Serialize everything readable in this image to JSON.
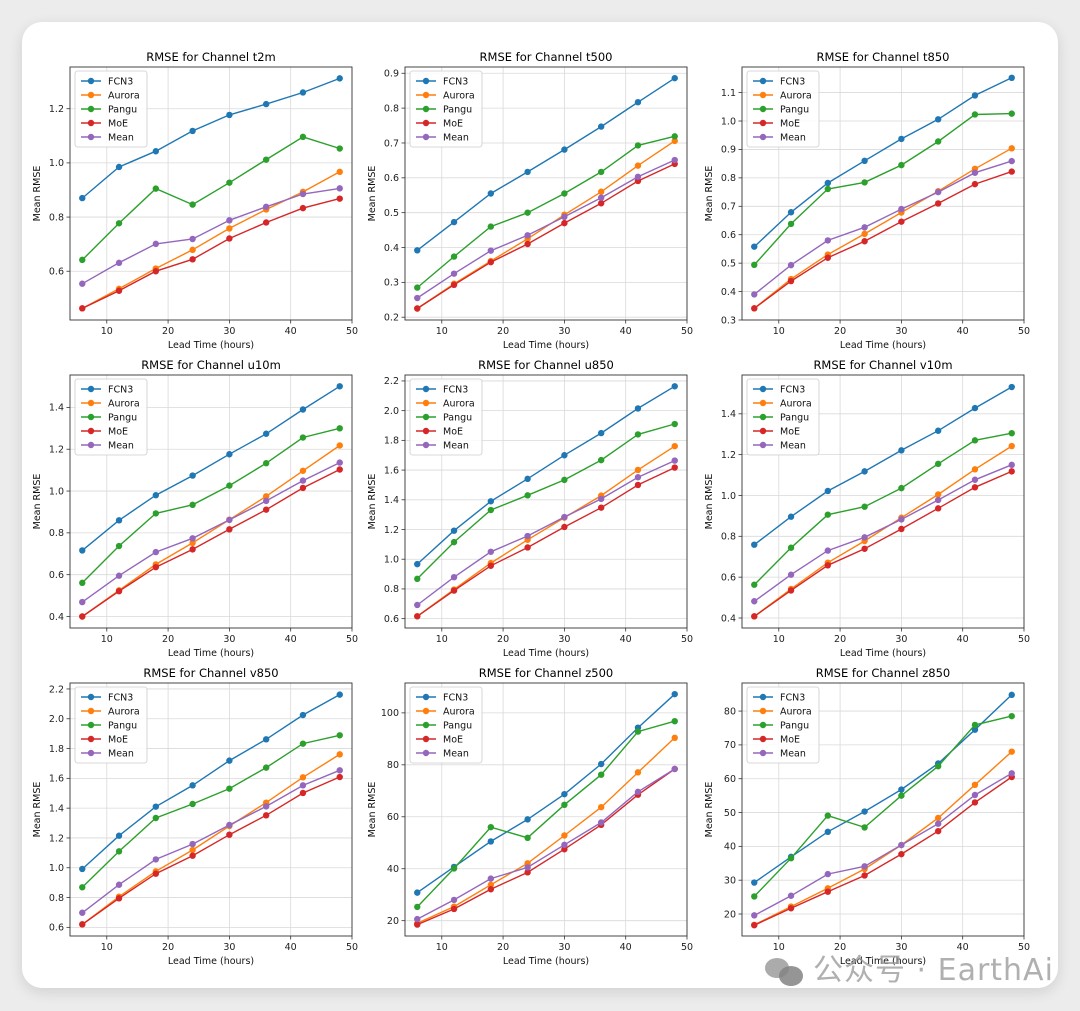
{
  "watermark": "公众号 · EarthAi",
  "chart_data": [
    {
      "type": "line",
      "title": "RMSE for Channel t2m",
      "xlabel": "Lead Time (hours)",
      "ylabel": "Mean RMSE",
      "x": [
        6,
        12,
        18,
        24,
        30,
        36,
        42,
        48
      ],
      "xlim": [
        4,
        50
      ],
      "ylim": [
        0.42,
        1.354
      ],
      "xticks": [
        10,
        20,
        30,
        40,
        50
      ],
      "yticks": [
        0.6,
        0.8,
        1.0,
        1.2
      ],
      "ytick_labels": [
        "0.6",
        "0.8",
        "1.0",
        "1.2"
      ],
      "grid": true,
      "legend": "top-left",
      "series": [
        {
          "name": "FCN3",
          "color": "#1f77b4",
          "values": [
            0.87,
            0.985,
            1.043,
            1.118,
            1.177,
            1.217,
            1.26,
            1.312
          ]
        },
        {
          "name": "Aurora",
          "color": "#ff7f0e",
          "values": [
            0.463,
            0.535,
            0.61,
            0.679,
            0.758,
            0.828,
            0.893,
            0.967
          ]
        },
        {
          "name": "Pangu",
          "color": "#2ca02c",
          "values": [
            0.642,
            0.777,
            0.905,
            0.846,
            0.927,
            1.012,
            1.096,
            1.053
          ]
        },
        {
          "name": "MoE",
          "color": "#d62728",
          "values": [
            0.463,
            0.528,
            0.6,
            0.644,
            0.721,
            0.78,
            0.833,
            0.868
          ]
        },
        {
          "name": "Mean",
          "color": "#9467bd",
          "values": [
            0.554,
            0.631,
            0.701,
            0.719,
            0.788,
            0.838,
            0.885,
            0.906
          ]
        }
      ]
    },
    {
      "type": "line",
      "title": "RMSE for Channel t500",
      "xlabel": "Lead Time (hours)",
      "ylabel": "Mean RMSE",
      "x": [
        6,
        12,
        18,
        24,
        30,
        36,
        42,
        48
      ],
      "xlim": [
        4,
        50
      ],
      "ylim": [
        0.192,
        0.918
      ],
      "xticks": [
        10,
        20,
        30,
        40,
        50
      ],
      "yticks": [
        0.2,
        0.3,
        0.4,
        0.5,
        0.6,
        0.7,
        0.8,
        0.9
      ],
      "ytick_labels": [
        "0.2",
        "0.3",
        "0.4",
        "0.5",
        "0.6",
        "0.7",
        "0.8",
        "0.9"
      ],
      "grid": true,
      "legend": "top-left",
      "series": [
        {
          "name": "FCN3",
          "color": "#1f77b4",
          "values": [
            0.392,
            0.473,
            0.555,
            0.617,
            0.681,
            0.747,
            0.817,
            0.886
          ]
        },
        {
          "name": "Aurora",
          "color": "#ff7f0e",
          "values": [
            0.225,
            0.296,
            0.361,
            0.425,
            0.494,
            0.56,
            0.635,
            0.706
          ]
        },
        {
          "name": "Pangu",
          "color": "#2ca02c",
          "values": [
            0.285,
            0.374,
            0.46,
            0.5,
            0.555,
            0.617,
            0.693,
            0.719
          ]
        },
        {
          "name": "MoE",
          "color": "#d62728",
          "values": [
            0.225,
            0.293,
            0.358,
            0.41,
            0.47,
            0.527,
            0.591,
            0.64
          ]
        },
        {
          "name": "Mean",
          "color": "#9467bd",
          "values": [
            0.255,
            0.325,
            0.391,
            0.435,
            0.488,
            0.543,
            0.603,
            0.651
          ]
        }
      ]
    },
    {
      "type": "line",
      "title": "RMSE for Channel t850",
      "xlabel": "Lead Time (hours)",
      "ylabel": "Mean RMSE",
      "x": [
        6,
        12,
        18,
        24,
        30,
        36,
        42,
        48
      ],
      "xlim": [
        4,
        50
      ],
      "ylim": [
        0.3,
        1.19
      ],
      "xticks": [
        10,
        20,
        30,
        40,
        50
      ],
      "yticks": [
        0.3,
        0.4,
        0.5,
        0.6,
        0.7,
        0.8,
        0.9,
        1.0,
        1.1
      ],
      "ytick_labels": [
        "0.3",
        "0.4",
        "0.5",
        "0.6",
        "0.7",
        "0.8",
        "0.9",
        "1.0",
        "1.1"
      ],
      "grid": true,
      "legend": "top-left",
      "series": [
        {
          "name": "FCN3",
          "color": "#1f77b4",
          "values": [
            0.558,
            0.679,
            0.782,
            0.86,
            0.937,
            1.006,
            1.09,
            1.152
          ]
        },
        {
          "name": "Aurora",
          "color": "#ff7f0e",
          "values": [
            0.341,
            0.444,
            0.53,
            0.603,
            0.678,
            0.753,
            0.832,
            0.904
          ]
        },
        {
          "name": "Pangu",
          "color": "#2ca02c",
          "values": [
            0.494,
            0.638,
            0.761,
            0.784,
            0.845,
            0.928,
            1.023,
            1.026
          ]
        },
        {
          "name": "MoE",
          "color": "#d62728",
          "values": [
            0.341,
            0.437,
            0.519,
            0.577,
            0.646,
            0.71,
            0.778,
            0.822
          ]
        },
        {
          "name": "Mean",
          "color": "#9467bd",
          "values": [
            0.39,
            0.493,
            0.58,
            0.626,
            0.69,
            0.75,
            0.818,
            0.859
          ]
        }
      ]
    },
    {
      "type": "line",
      "title": "RMSE for Channel u10m",
      "xlabel": "Lead Time (hours)",
      "ylabel": "Mean RMSE",
      "x": [
        6,
        12,
        18,
        24,
        30,
        36,
        42,
        48
      ],
      "xlim": [
        4,
        50
      ],
      "ylim": [
        0.345,
        1.555
      ],
      "xticks": [
        10,
        20,
        30,
        40,
        50
      ],
      "yticks": [
        0.4,
        0.6,
        0.8,
        1.0,
        1.2,
        1.4
      ],
      "ytick_labels": [
        "0.4",
        "0.6",
        "0.8",
        "1.0",
        "1.2",
        "1.4"
      ],
      "grid": true,
      "legend": "top-left",
      "series": [
        {
          "name": "FCN3",
          "color": "#1f77b4",
          "values": [
            0.716,
            0.86,
            0.98,
            1.074,
            1.176,
            1.274,
            1.39,
            1.501
          ]
        },
        {
          "name": "Aurora",
          "color": "#ff7f0e",
          "values": [
            0.4,
            0.525,
            0.649,
            0.752,
            0.863,
            0.975,
            1.097,
            1.218
          ]
        },
        {
          "name": "Pangu",
          "color": "#2ca02c",
          "values": [
            0.561,
            0.737,
            0.893,
            0.934,
            1.026,
            1.133,
            1.256,
            1.3
          ]
        },
        {
          "name": "MoE",
          "color": "#d62728",
          "values": [
            0.4,
            0.521,
            0.636,
            0.721,
            0.817,
            0.911,
            1.015,
            1.103
          ]
        },
        {
          "name": "Mean",
          "color": "#9467bd",
          "values": [
            0.469,
            0.595,
            0.708,
            0.774,
            0.862,
            0.953,
            1.05,
            1.136
          ]
        }
      ]
    },
    {
      "type": "line",
      "title": "RMSE for Channel u850",
      "xlabel": "Lead Time (hours)",
      "ylabel": "Mean RMSE",
      "x": [
        6,
        12,
        18,
        24,
        30,
        36,
        42,
        48
      ],
      "xlim": [
        4,
        50
      ],
      "ylim": [
        0.537,
        2.24
      ],
      "xticks": [
        10,
        20,
        30,
        40,
        50
      ],
      "yticks": [
        0.6,
        0.8,
        1.0,
        1.2,
        1.4,
        1.6,
        1.8,
        2.0,
        2.2
      ],
      "ytick_labels": [
        "0.6",
        "0.8",
        "1.0",
        "1.2",
        "1.4",
        "1.6",
        "1.8",
        "2.0",
        "2.2"
      ],
      "grid": true,
      "legend": "top-left",
      "series": [
        {
          "name": "FCN3",
          "color": "#1f77b4",
          "values": [
            0.967,
            1.192,
            1.39,
            1.541,
            1.7,
            1.849,
            2.015,
            2.164
          ]
        },
        {
          "name": "Aurora",
          "color": "#ff7f0e",
          "values": [
            0.616,
            0.796,
            0.974,
            1.131,
            1.28,
            1.428,
            1.601,
            1.761
          ]
        },
        {
          "name": "Pangu",
          "color": "#2ca02c",
          "values": [
            0.868,
            1.115,
            1.331,
            1.43,
            1.534,
            1.667,
            1.84,
            1.91
          ]
        },
        {
          "name": "MoE",
          "color": "#d62728",
          "values": [
            0.616,
            0.789,
            0.956,
            1.079,
            1.217,
            1.347,
            1.5,
            1.617
          ]
        },
        {
          "name": "Mean",
          "color": "#9467bd",
          "values": [
            0.692,
            0.879,
            1.05,
            1.156,
            1.284,
            1.406,
            1.552,
            1.664
          ]
        }
      ]
    },
    {
      "type": "line",
      "title": "RMSE for Channel v10m",
      "xlabel": "Lead Time (hours)",
      "ylabel": "Mean RMSE",
      "x": [
        6,
        12,
        18,
        24,
        30,
        36,
        42,
        48
      ],
      "xlim": [
        4,
        50
      ],
      "ylim": [
        0.351,
        1.59
      ],
      "xticks": [
        10,
        20,
        30,
        40,
        50
      ],
      "yticks": [
        0.4,
        0.6,
        0.8,
        1.0,
        1.2,
        1.4
      ],
      "ytick_labels": [
        "0.4",
        "0.6",
        "0.8",
        "1.0",
        "1.2",
        "1.4"
      ],
      "grid": true,
      "legend": "top-left",
      "series": [
        {
          "name": "FCN3",
          "color": "#1f77b4",
          "values": [
            0.759,
            0.896,
            1.022,
            1.118,
            1.221,
            1.317,
            1.428,
            1.531
          ]
        },
        {
          "name": "Aurora",
          "color": "#ff7f0e",
          "values": [
            0.408,
            0.542,
            0.671,
            0.777,
            0.891,
            1.005,
            1.128,
            1.242
          ]
        },
        {
          "name": "Pangu",
          "color": "#2ca02c",
          "values": [
            0.563,
            0.744,
            0.906,
            0.945,
            1.036,
            1.155,
            1.27,
            1.305
          ]
        },
        {
          "name": "MoE",
          "color": "#d62728",
          "values": [
            0.408,
            0.535,
            0.658,
            0.739,
            0.836,
            0.937,
            1.04,
            1.118
          ]
        },
        {
          "name": "Mean",
          "color": "#9467bd",
          "values": [
            0.482,
            0.612,
            0.73,
            0.795,
            0.883,
            0.978,
            1.077,
            1.15
          ]
        }
      ]
    },
    {
      "type": "line",
      "title": "RMSE for Channel v850",
      "xlabel": "Lead Time (hours)",
      "ylabel": "Mean RMSE",
      "x": [
        6,
        12,
        18,
        24,
        30,
        36,
        42,
        48
      ],
      "xlim": [
        4,
        50
      ],
      "ylim": [
        0.542,
        2.24
      ],
      "xticks": [
        10,
        20,
        30,
        40,
        50
      ],
      "yticks": [
        0.6,
        0.8,
        1.0,
        1.2,
        1.4,
        1.6,
        1.8,
        2.0,
        2.2
      ],
      "ytick_labels": [
        "0.6",
        "0.8",
        "1.0",
        "1.2",
        "1.4",
        "1.6",
        "1.8",
        "2.0",
        "2.2"
      ],
      "grid": true,
      "legend": "top-left",
      "series": [
        {
          "name": "FCN3",
          "color": "#1f77b4",
          "values": [
            0.992,
            1.215,
            1.41,
            1.553,
            1.719,
            1.862,
            2.025,
            2.162
          ]
        },
        {
          "name": "Aurora",
          "color": "#ff7f0e",
          "values": [
            0.62,
            0.806,
            0.976,
            1.119,
            1.28,
            1.437,
            1.607,
            1.761
          ]
        },
        {
          "name": "Pangu",
          "color": "#2ca02c",
          "values": [
            0.869,
            1.11,
            1.334,
            1.428,
            1.531,
            1.672,
            1.833,
            1.889
          ]
        },
        {
          "name": "MoE",
          "color": "#d62728",
          "values": [
            0.62,
            0.795,
            0.96,
            1.081,
            1.222,
            1.352,
            1.502,
            1.609
          ]
        },
        {
          "name": "Mean",
          "color": "#9467bd",
          "values": [
            0.698,
            0.886,
            1.056,
            1.159,
            1.287,
            1.412,
            1.553,
            1.654
          ]
        }
      ]
    },
    {
      "type": "line",
      "title": "RMSE for Channel z500",
      "xlabel": "Lead Time (hours)",
      "ylabel": "Mean RMSE",
      "x": [
        6,
        12,
        18,
        24,
        30,
        36,
        42,
        48
      ],
      "xlim": [
        4,
        50
      ],
      "ylim": [
        14.1,
        111.5
      ],
      "xticks": [
        10,
        20,
        30,
        40,
        50
      ],
      "yticks": [
        20,
        40,
        60,
        80,
        100
      ],
      "ytick_labels": [
        "20",
        "40",
        "60",
        "80",
        "100"
      ],
      "grid": true,
      "legend": "top-left",
      "series": [
        {
          "name": "FCN3",
          "color": "#1f77b4",
          "values": [
            30.8,
            40.7,
            50.5,
            59.0,
            68.7,
            80.3,
            94.3,
            107.2
          ]
        },
        {
          "name": "Aurora",
          "color": "#ff7f0e",
          "values": [
            19.0,
            25.4,
            33.8,
            42.1,
            52.8,
            63.7,
            77.1,
            90.4
          ]
        },
        {
          "name": "Pangu",
          "color": "#2ca02c",
          "values": [
            25.3,
            40.1,
            56.0,
            51.9,
            64.6,
            76.2,
            92.8,
            96.8
          ]
        },
        {
          "name": "MoE",
          "color": "#d62728",
          "values": [
            18.5,
            24.5,
            32.1,
            38.6,
            47.5,
            56.9,
            68.5,
            78.4
          ]
        },
        {
          "name": "Mean",
          "color": "#9467bd",
          "values": [
            20.6,
            28.0,
            36.2,
            40.5,
            49.2,
            57.8,
            69.6,
            78.4
          ]
        }
      ]
    },
    {
      "type": "line",
      "title": "RMSE for Channel z850",
      "xlabel": "Lead Time (hours)",
      "ylabel": "Mean RMSE",
      "x": [
        6,
        12,
        18,
        24,
        30,
        36,
        42,
        48
      ],
      "xlim": [
        4,
        50
      ],
      "ylim": [
        13.5,
        88.3
      ],
      "xticks": [
        10,
        20,
        30,
        40,
        50
      ],
      "yticks": [
        20,
        30,
        40,
        50,
        60,
        70,
        80
      ],
      "ytick_labels": [
        "20",
        "30",
        "40",
        "50",
        "60",
        "70",
        "80"
      ],
      "grid": true,
      "legend": "top-left",
      "series": [
        {
          "name": "FCN3",
          "color": "#1f77b4",
          "values": [
            29.3,
            36.9,
            44.3,
            50.3,
            56.8,
            64.5,
            74.5,
            84.8
          ]
        },
        {
          "name": "Aurora",
          "color": "#ff7f0e",
          "values": [
            16.8,
            22.2,
            27.6,
            33.3,
            40.4,
            48.4,
            58.2,
            68.0
          ]
        },
        {
          "name": "Pangu",
          "color": "#2ca02c",
          "values": [
            25.2,
            36.5,
            49.1,
            45.6,
            55.0,
            63.7,
            75.9,
            78.5
          ]
        },
        {
          "name": "MoE",
          "color": "#d62728",
          "values": [
            16.7,
            21.7,
            26.6,
            31.4,
            37.7,
            44.5,
            53.0,
            60.5
          ]
        },
        {
          "name": "Mean",
          "color": "#9467bd",
          "values": [
            19.6,
            25.4,
            31.8,
            34.1,
            40.4,
            46.7,
            55.2,
            61.6
          ]
        }
      ]
    }
  ]
}
